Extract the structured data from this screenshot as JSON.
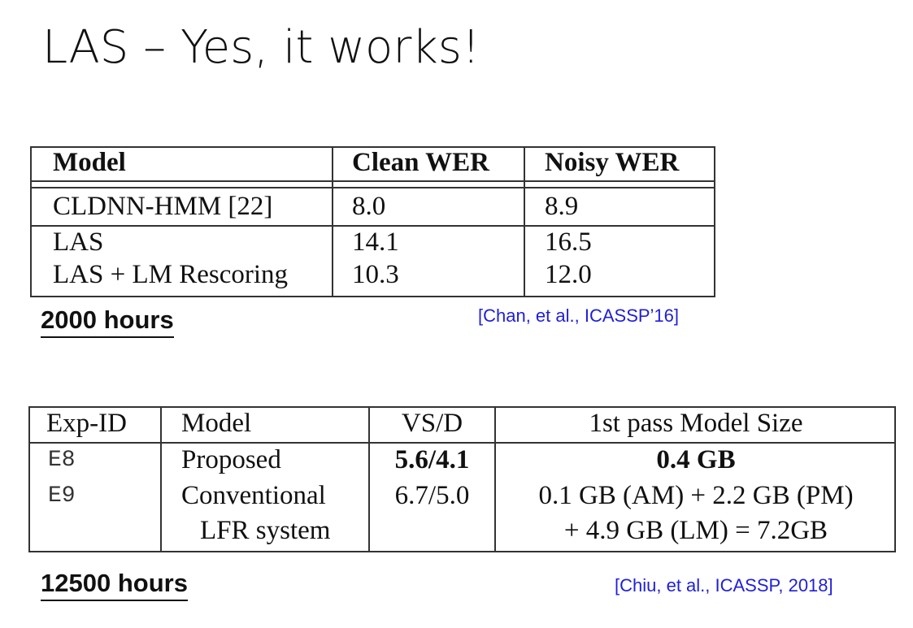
{
  "slide": {
    "title": "LAS – Yes, it works!"
  },
  "table1": {
    "headers": [
      "Model",
      "Clean WER",
      "Noisy WER"
    ],
    "rows": [
      [
        "CLDNN-HMM [22]",
        "8.0",
        "8.9"
      ],
      [
        "LAS",
        "14.1",
        "16.5"
      ],
      [
        "LAS + LM Rescoring",
        "10.3",
        "12.0"
      ]
    ],
    "hours_label": "2000 hours",
    "citation": "[Chan, et al., ICASSP’16]"
  },
  "table2": {
    "headers": [
      "Exp-ID",
      "Model",
      "VS/D",
      "1st pass Model Size"
    ],
    "rows": [
      {
        "id": "E8",
        "model": "Proposed",
        "model_line2": "",
        "vsd": "5.6/4.1",
        "size": "0.4 GB",
        "size_line2": ""
      },
      {
        "id": "E9",
        "model": "Conventional",
        "model_line2": "LFR system",
        "vsd": "6.7/5.0",
        "size": "0.1 GB (AM) + 2.2 GB (PM)",
        "size_line2": "+ 4.9 GB (LM) = 7.2GB"
      }
    ],
    "hours_label": "12500 hours",
    "citation": "[Chiu, et al., ICASSP, 2018]"
  }
}
